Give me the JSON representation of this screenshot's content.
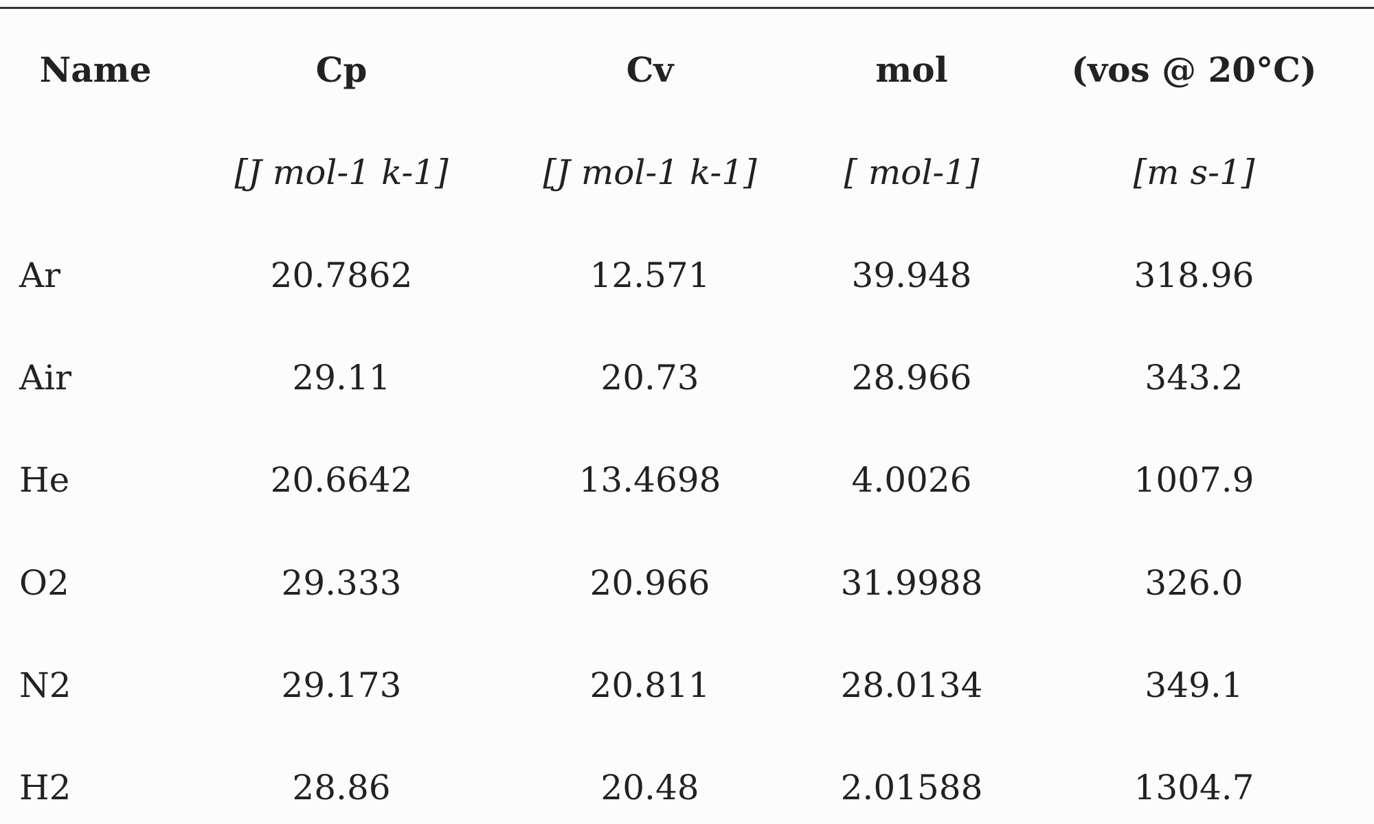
{
  "table": {
    "header": [
      "Name",
      "Cp",
      "Cv",
      "mol",
      "(vos @ 20°C)"
    ],
    "units": [
      "[J mol-1 k-1]",
      "[J mol-1 k-1]",
      "[ mol-1]",
      "[m s-1]"
    ],
    "rows": [
      [
        "Ar",
        "20.7862",
        "12.571",
        "39.948",
        "318.96"
      ],
      [
        "Air",
        "29.11",
        "20.73",
        "28.966",
        "343.2"
      ],
      [
        "He",
        "20.6642",
        "13.4698",
        "4.0026",
        "1007.9"
      ],
      [
        "O2",
        "29.333",
        "20.966",
        "31.9988",
        "326.0"
      ],
      [
        "N2",
        "29.173",
        "20.811",
        "28.0134",
        "349.1"
      ],
      [
        "H2",
        "28.86",
        "20.48",
        "2.01588",
        "1304.7"
      ]
    ]
  }
}
